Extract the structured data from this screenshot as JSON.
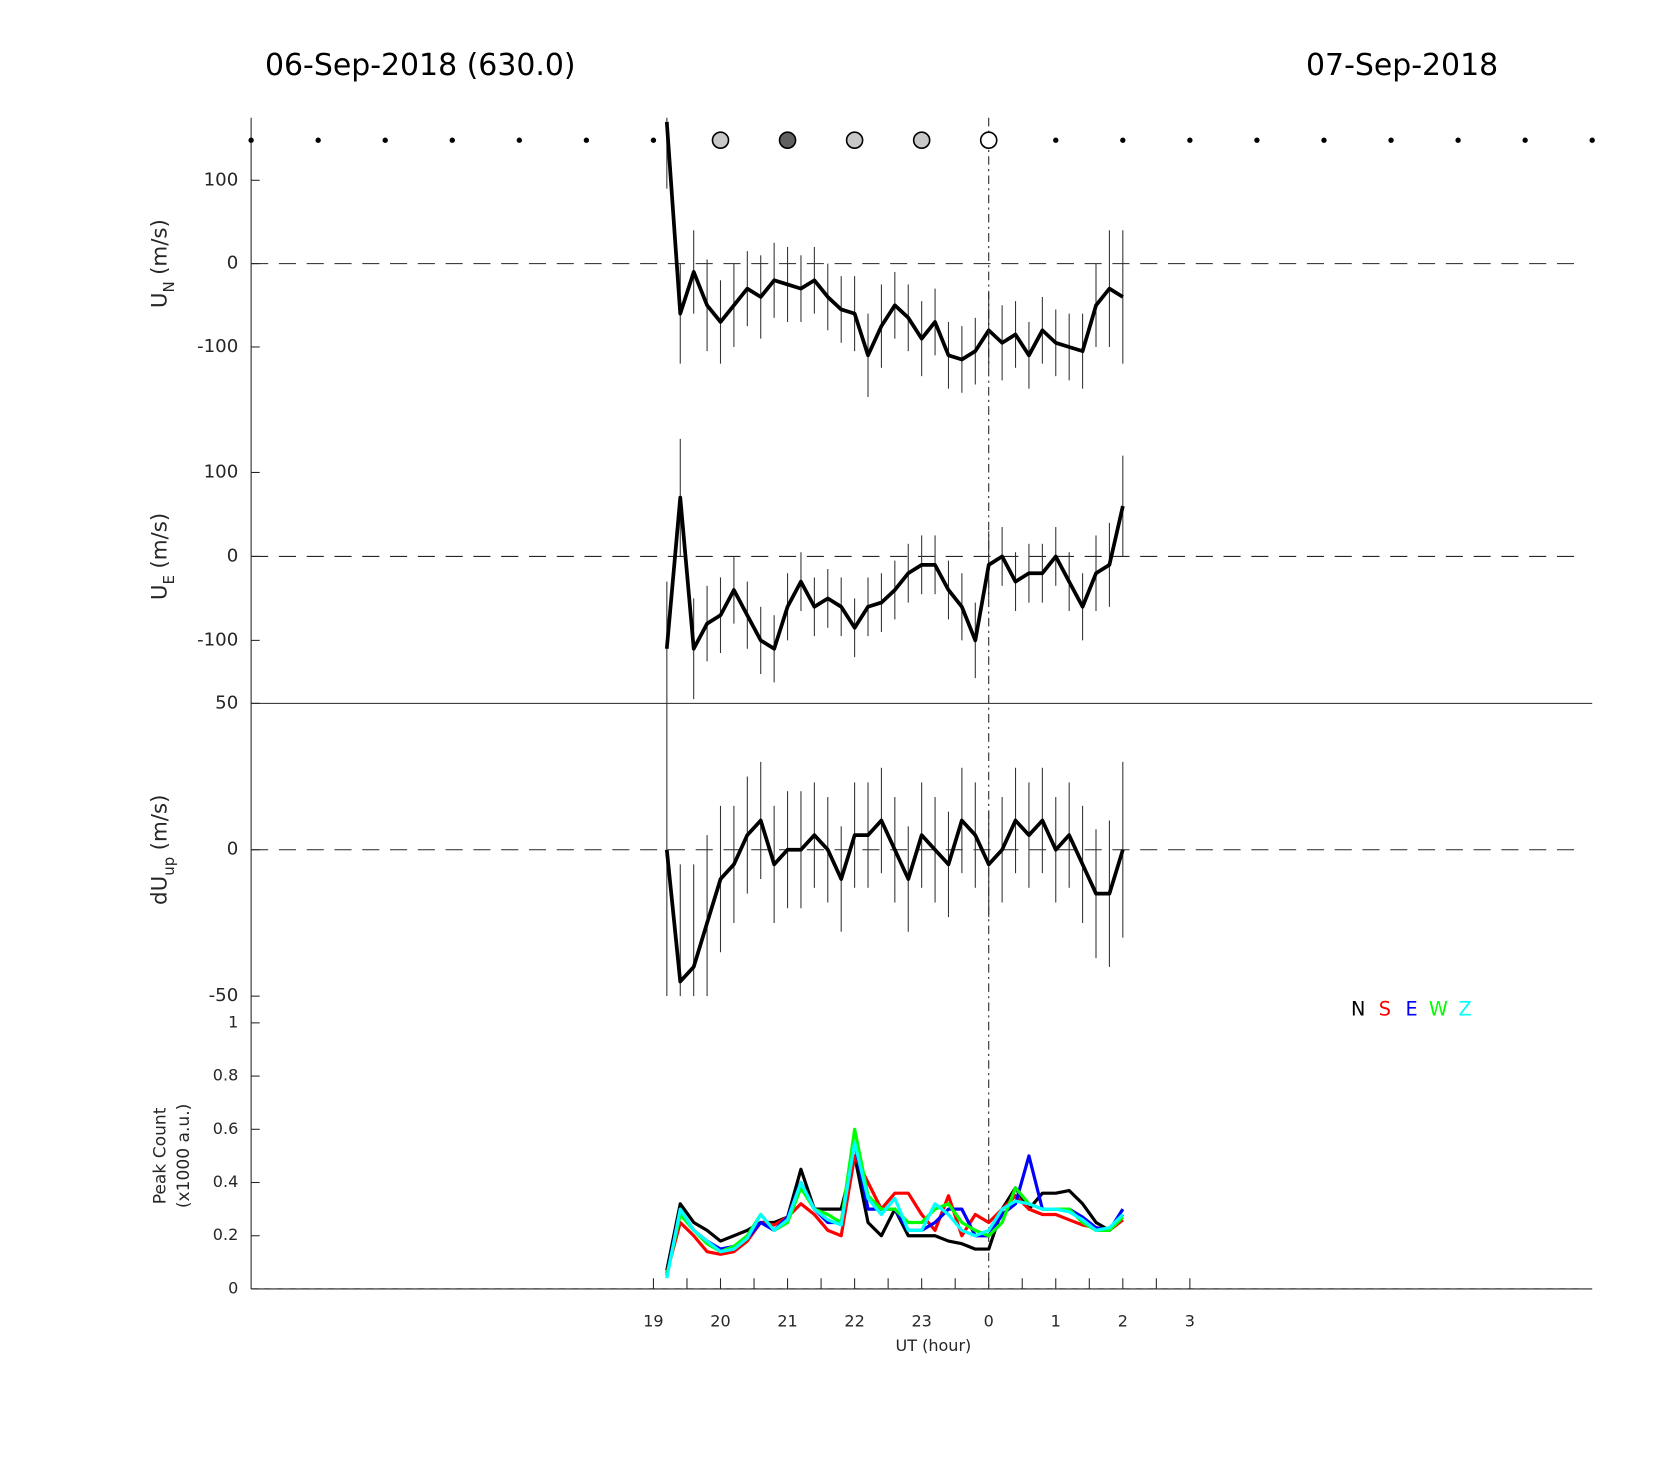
{
  "chart_data": [
    {
      "type": "errorbar-line",
      "title": "06-Sep-2018 (630.0)",
      "title_right": "07-Sep-2018",
      "ylabel": "U",
      "ylabel_sub": "N",
      "ylabel_unit": "(m/s)",
      "xlim": [
        13,
        33
      ],
      "ylim": [
        -175,
        175
      ],
      "yticks": [
        -100,
        0,
        100
      ],
      "ref_line": 0,
      "vline": 24,
      "dots": [
        13,
        14,
        15,
        16,
        17,
        18,
        19,
        25,
        26,
        27,
        28,
        29,
        30,
        31,
        32,
        33
      ],
      "circles": {
        "x": [
          20,
          21,
          22,
          23,
          24
        ],
        "colors": [
          "#c8c8c8",
          "#606060",
          "#c8c8c8",
          "#c8c8c8",
          "#ffffff"
        ]
      },
      "color": "#000000",
      "x": [
        19.2,
        19.4,
        19.6,
        19.8,
        20.0,
        20.2,
        20.4,
        20.6,
        20.8,
        21.0,
        21.2,
        21.4,
        21.6,
        21.8,
        22.0,
        22.2,
        22.4,
        22.6,
        22.8,
        23.0,
        23.2,
        23.4,
        23.6,
        23.8,
        24.0,
        24.2,
        24.4,
        24.6,
        24.8,
        25.0,
        25.2,
        25.4,
        25.6,
        25.8,
        26.0
      ],
      "values": [
        170,
        -60,
        -10,
        -50,
        -70,
        -50,
        -30,
        -40,
        -20,
        -25,
        -30,
        -20,
        -40,
        -55,
        -60,
        -110,
        -75,
        -50,
        -65,
        -90,
        -70,
        -110,
        -115,
        -105,
        -80,
        -95,
        -85,
        -110,
        -80,
        -95,
        -100,
        -105,
        -50,
        -30,
        -40
      ],
      "errors": [
        80,
        60,
        50,
        55,
        50,
        50,
        45,
        50,
        45,
        45,
        40,
        40,
        40,
        40,
        45,
        50,
        50,
        40,
        40,
        45,
        40,
        40,
        40,
        40,
        45,
        45,
        40,
        40,
        40,
        40,
        40,
        45,
        50,
        70,
        80
      ]
    },
    {
      "type": "errorbar-line",
      "ylabel": "U",
      "ylabel_sub": "E",
      "ylabel_unit": "(m/s)",
      "xlim": [
        13,
        33
      ],
      "ylim": [
        -175,
        175
      ],
      "yticks": [
        -100,
        0,
        100
      ],
      "ref_line": 0,
      "color": "#000000",
      "x": [
        19.2,
        19.4,
        19.6,
        19.8,
        20.0,
        20.2,
        20.4,
        20.6,
        20.8,
        21.0,
        21.2,
        21.4,
        21.6,
        21.8,
        22.0,
        22.2,
        22.4,
        22.6,
        22.8,
        23.0,
        23.2,
        23.4,
        23.6,
        23.8,
        24.0,
        24.2,
        24.4,
        24.6,
        24.8,
        25.0,
        25.2,
        25.4,
        25.6,
        25.8,
        26.0
      ],
      "values": [
        -110,
        70,
        -110,
        -80,
        -70,
        -40,
        -70,
        -100,
        -110,
        -60,
        -30,
        -60,
        -50,
        -60,
        -85,
        -60,
        -55,
        -40,
        -20,
        -10,
        -10,
        -40,
        -60,
        -100,
        -10,
        0,
        -30,
        -20,
        -20,
        0,
        -30,
        -60,
        -20,
        -10,
        60
      ],
      "errors": [
        80,
        70,
        60,
        45,
        45,
        40,
        40,
        40,
        40,
        40,
        35,
        35,
        35,
        35,
        35,
        35,
        35,
        35,
        35,
        35,
        35,
        35,
        40,
        45,
        40,
        35,
        35,
        35,
        35,
        35,
        35,
        40,
        45,
        50,
        60
      ]
    },
    {
      "type": "errorbar-line",
      "ylabel": "dU",
      "ylabel_sub": "up",
      "ylabel_unit": "(m/s)",
      "xlim": [
        13,
        33
      ],
      "ylim": [
        -50,
        50
      ],
      "yticks": [
        -50,
        0,
        50
      ],
      "ref_line": 0,
      "color": "#000000",
      "x": [
        19.2,
        19.4,
        19.6,
        19.8,
        20.0,
        20.2,
        20.4,
        20.6,
        20.8,
        21.0,
        21.2,
        21.4,
        21.6,
        21.8,
        22.0,
        22.2,
        22.4,
        22.6,
        22.8,
        23.0,
        23.2,
        23.4,
        23.6,
        23.8,
        24.0,
        24.2,
        24.4,
        24.6,
        24.8,
        25.0,
        25.2,
        25.4,
        25.6,
        25.8,
        26.0
      ],
      "values": [
        0,
        -45,
        -40,
        -25,
        -10,
        -5,
        5,
        10,
        -5,
        0,
        0,
        5,
        0,
        -10,
        5,
        5,
        10,
        0,
        -10,
        5,
        0,
        -5,
        10,
        5,
        -5,
        0,
        10,
        5,
        10,
        0,
        5,
        -5,
        -15,
        -15,
        0
      ],
      "errors": [
        50,
        40,
        35,
        30,
        25,
        20,
        20,
        20,
        20,
        20,
        20,
        18,
        18,
        18,
        18,
        18,
        18,
        18,
        18,
        18,
        18,
        18,
        18,
        18,
        18,
        18,
        18,
        18,
        18,
        18,
        18,
        20,
        22,
        25,
        30
      ]
    },
    {
      "type": "line",
      "ylabel": [
        "Peak Count",
        "(x1000 a.u.)"
      ],
      "xlabel": "UT (hour)",
      "xlim": [
        13,
        33
      ],
      "ylim": [
        0,
        1
      ],
      "yticks": [
        0,
        0.2,
        0.4,
        0.6,
        0.8,
        1
      ],
      "ref_line": 0,
      "xticks": [
        19,
        20,
        21,
        22,
        23,
        {
          "value": 24,
          "label": "0"
        },
        {
          "value": 25,
          "label": "1"
        },
        {
          "value": 26,
          "label": "2"
        },
        {
          "value": 27,
          "label": "3"
        }
      ],
      "xticks_minor": [
        19.5,
        20.5,
        21.5,
        22.5,
        23.5,
        24.5,
        25.5,
        26.5
      ],
      "x": [
        19.2,
        19.4,
        19.6,
        19.8,
        20.0,
        20.2,
        20.4,
        20.6,
        20.8,
        21.0,
        21.2,
        21.4,
        21.6,
        21.8,
        22.0,
        22.2,
        22.4,
        22.6,
        22.8,
        23.0,
        23.2,
        23.4,
        23.6,
        23.8,
        24.0,
        24.2,
        24.4,
        24.6,
        24.8,
        25.0,
        25.2,
        25.4,
        25.6,
        25.8,
        26.0
      ],
      "series": [
        {
          "name": "N",
          "color": "#000000",
          "values": [
            0.07,
            0.32,
            0.25,
            0.22,
            0.18,
            0.2,
            0.22,
            0.25,
            0.25,
            0.27,
            0.45,
            0.3,
            0.3,
            0.3,
            0.5,
            0.25,
            0.2,
            0.3,
            0.2,
            0.2,
            0.2,
            0.18,
            0.17,
            0.15,
            0.15,
            0.3,
            0.38,
            0.3,
            0.36,
            0.36,
            0.37,
            0.32,
            0.25,
            0.22,
            0.28
          ]
        },
        {
          "name": "S",
          "color": "#ff0000",
          "values": [
            0.06,
            0.25,
            0.2,
            0.14,
            0.13,
            0.14,
            0.18,
            0.25,
            0.24,
            0.27,
            0.32,
            0.28,
            0.22,
            0.2,
            0.5,
            0.4,
            0.3,
            0.36,
            0.36,
            0.28,
            0.22,
            0.35,
            0.2,
            0.28,
            0.25,
            0.3,
            0.35,
            0.3,
            0.28,
            0.28,
            0.26,
            0.24,
            0.23,
            0.22,
            0.26
          ]
        },
        {
          "name": "E",
          "color": "#0000ff",
          "values": [
            0.05,
            0.3,
            0.22,
            0.18,
            0.15,
            0.16,
            0.19,
            0.25,
            0.22,
            0.27,
            0.4,
            0.3,
            0.25,
            0.25,
            0.55,
            0.3,
            0.3,
            0.3,
            0.22,
            0.22,
            0.25,
            0.3,
            0.3,
            0.2,
            0.2,
            0.28,
            0.32,
            0.5,
            0.3,
            0.3,
            0.3,
            0.27,
            0.23,
            0.22,
            0.3
          ]
        },
        {
          "name": "W",
          "color": "#00ff00",
          "values": [
            0.05,
            0.28,
            0.22,
            0.17,
            0.14,
            0.16,
            0.2,
            0.28,
            0.22,
            0.25,
            0.38,
            0.3,
            0.28,
            0.25,
            0.6,
            0.35,
            0.3,
            0.3,
            0.25,
            0.25,
            0.3,
            0.32,
            0.25,
            0.22,
            0.2,
            0.25,
            0.38,
            0.32,
            0.3,
            0.3,
            0.3,
            0.25,
            0.22,
            0.22,
            0.27
          ]
        },
        {
          "name": "Z",
          "color": "#00ffff",
          "values": [
            0.04,
            0.3,
            0.22,
            0.18,
            0.14,
            0.15,
            0.19,
            0.28,
            0.22,
            0.26,
            0.4,
            0.3,
            0.26,
            0.24,
            0.55,
            0.34,
            0.28,
            0.34,
            0.22,
            0.22,
            0.32,
            0.28,
            0.22,
            0.2,
            0.22,
            0.3,
            0.33,
            0.32,
            0.3,
            0.3,
            0.29,
            0.26,
            0.22,
            0.23,
            0.28
          ]
        }
      ]
    }
  ]
}
